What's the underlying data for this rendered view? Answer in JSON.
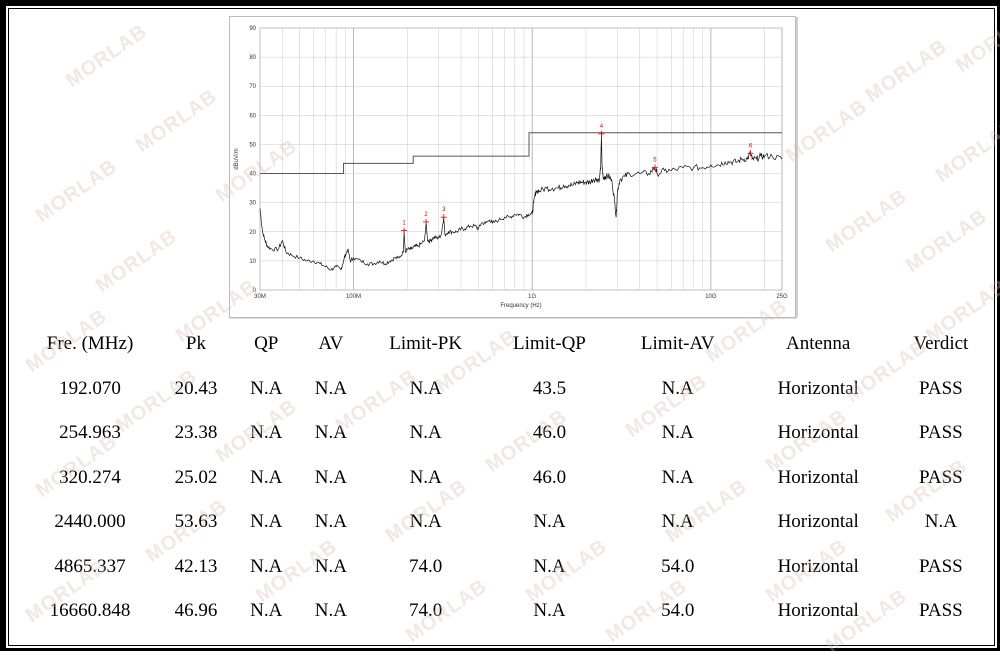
{
  "watermark": "MORLAB",
  "chart_data": {
    "type": "line",
    "x_scale": "log",
    "xlabel": "Frequency (Hz)",
    "ylabel": "dBuV/m",
    "xlim": [
      30,
      25000
    ],
    "ylim": [
      0,
      90
    ],
    "x_ticks": [
      {
        "v": 30,
        "label": "30M"
      },
      {
        "v": 100,
        "label": "100M"
      },
      {
        "v": 1000,
        "label": "1G"
      },
      {
        "v": 10000,
        "label": "10G"
      },
      {
        "v": 25000,
        "label": "25G"
      }
    ],
    "y_ticks": [
      0,
      10,
      20,
      30,
      40,
      50,
      60,
      70,
      80,
      90
    ],
    "grid": true,
    "limit_line": [
      [
        30,
        40
      ],
      [
        88,
        40
      ],
      [
        88,
        43.5
      ],
      [
        216,
        43.5
      ],
      [
        216,
        46
      ],
      [
        960,
        46
      ],
      [
        960,
        54
      ],
      [
        25000,
        54
      ]
    ],
    "trace": [
      [
        30,
        28
      ],
      [
        31,
        20
      ],
      [
        32,
        17
      ],
      [
        33,
        15
      ],
      [
        35,
        14
      ],
      [
        38,
        14
      ],
      [
        40,
        17
      ],
      [
        42,
        13
      ],
      [
        45,
        12
      ],
      [
        50,
        11
      ],
      [
        55,
        10
      ],
      [
        60,
        10
      ],
      [
        65,
        9
      ],
      [
        70,
        8
      ],
      [
        75,
        7
      ],
      [
        80,
        8
      ],
      [
        85,
        7
      ],
      [
        88,
        10
      ],
      [
        90,
        12
      ],
      [
        93,
        14
      ],
      [
        96,
        10
      ],
      [
        100,
        11
      ],
      [
        110,
        10
      ],
      [
        120,
        9
      ],
      [
        130,
        9
      ],
      [
        140,
        10
      ],
      [
        150,
        9
      ],
      [
        160,
        10
      ],
      [
        170,
        11
      ],
      [
        180,
        11
      ],
      [
        190,
        13
      ],
      [
        192,
        20
      ],
      [
        195,
        13
      ],
      [
        200,
        14
      ],
      [
        210,
        14
      ],
      [
        220,
        15
      ],
      [
        230,
        15
      ],
      [
        240,
        16
      ],
      [
        250,
        17
      ],
      [
        255,
        23
      ],
      [
        260,
        17
      ],
      [
        270,
        17
      ],
      [
        280,
        18
      ],
      [
        290,
        18
      ],
      [
        300,
        18
      ],
      [
        310,
        19
      ],
      [
        320,
        25
      ],
      [
        325,
        19
      ],
      [
        340,
        20
      ],
      [
        360,
        20
      ],
      [
        380,
        20
      ],
      [
        400,
        21
      ],
      [
        420,
        21
      ],
      [
        450,
        22
      ],
      [
        480,
        22
      ],
      [
        500,
        21
      ],
      [
        520,
        23
      ],
      [
        550,
        23
      ],
      [
        580,
        24
      ],
      [
        600,
        23
      ],
      [
        650,
        24
      ],
      [
        700,
        25
      ],
      [
        750,
        25
      ],
      [
        800,
        26
      ],
      [
        850,
        26
      ],
      [
        900,
        25
      ],
      [
        950,
        26
      ],
      [
        1000,
        26
      ],
      [
        1020,
        30
      ],
      [
        1050,
        34
      ],
      [
        1100,
        34
      ],
      [
        1200,
        35
      ],
      [
        1300,
        35
      ],
      [
        1400,
        35
      ],
      [
        1500,
        36
      ],
      [
        1600,
        36
      ],
      [
        1700,
        36
      ],
      [
        1800,
        37
      ],
      [
        1900,
        37
      ],
      [
        2000,
        37
      ],
      [
        2100,
        37
      ],
      [
        2200,
        38
      ],
      [
        2300,
        38
      ],
      [
        2380,
        38
      ],
      [
        2420,
        43
      ],
      [
        2440,
        53.6
      ],
      [
        2460,
        43
      ],
      [
        2500,
        38
      ],
      [
        2550,
        39
      ],
      [
        2600,
        39
      ],
      [
        2700,
        39
      ],
      [
        2800,
        37
      ],
      [
        2900,
        30
      ],
      [
        2950,
        25
      ],
      [
        3000,
        34
      ],
      [
        3100,
        38
      ],
      [
        3300,
        39
      ],
      [
        3500,
        40
      ],
      [
        4000,
        40
      ],
      [
        4500,
        40
      ],
      [
        4865,
        42
      ],
      [
        5000,
        40
      ],
      [
        5500,
        41
      ],
      [
        6000,
        41
      ],
      [
        7000,
        42
      ],
      [
        8000,
        42
      ],
      [
        9000,
        42
      ],
      [
        10000,
        43
      ],
      [
        11000,
        43
      ],
      [
        12000,
        44
      ],
      [
        13000,
        44
      ],
      [
        14000,
        44
      ],
      [
        15000,
        45
      ],
      [
        16000,
        45
      ],
      [
        16660,
        47
      ],
      [
        17000,
        45
      ],
      [
        18000,
        45
      ],
      [
        19000,
        46
      ],
      [
        20000,
        46
      ],
      [
        22000,
        46
      ],
      [
        25000,
        45
      ]
    ],
    "markers": [
      {
        "label": "1",
        "x": 192.07,
        "y": 20.43
      },
      {
        "label": "2",
        "x": 254.963,
        "y": 23.38
      },
      {
        "label": "3",
        "x": 320.274,
        "y": 25.02
      },
      {
        "label": "4",
        "x": 2440.0,
        "y": 53.63
      },
      {
        "label": "5",
        "x": 4865.337,
        "y": 42.13
      },
      {
        "label": "6",
        "x": 16660.848,
        "y": 46.96
      }
    ]
  },
  "table": {
    "headers": [
      "Fre. (MHz)",
      "Pk",
      "QP",
      "AV",
      "Limit-PK",
      "Limit-QP",
      "Limit-AV",
      "Antenna",
      "Verdict"
    ],
    "rows": [
      [
        "192.070",
        "20.43",
        "N.A",
        "N.A",
        "N.A",
        "43.5",
        "N.A",
        "Horizontal",
        "PASS"
      ],
      [
        "254.963",
        "23.38",
        "N.A",
        "N.A",
        "N.A",
        "46.0",
        "N.A",
        "Horizontal",
        "PASS"
      ],
      [
        "320.274",
        "25.02",
        "N.A",
        "N.A",
        "N.A",
        "46.0",
        "N.A",
        "Horizontal",
        "PASS"
      ],
      [
        "2440.000",
        "53.63",
        "N.A",
        "N.A",
        "N.A",
        "N.A",
        "N.A",
        "Horizontal",
        "N.A"
      ],
      [
        "4865.337",
        "42.13",
        "N.A",
        "N.A",
        "74.0",
        "N.A",
        "54.0",
        "Horizontal",
        "PASS"
      ],
      [
        "16660.848",
        "46.96",
        "N.A",
        "N.A",
        "74.0",
        "N.A",
        "54.0",
        "Horizontal",
        "PASS"
      ]
    ]
  }
}
